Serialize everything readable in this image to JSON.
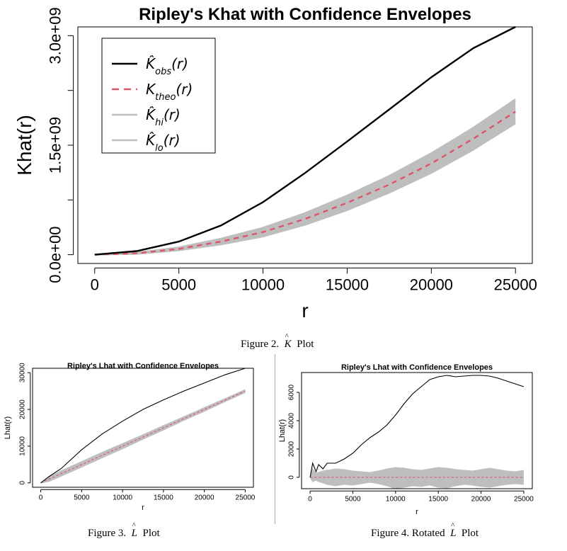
{
  "chart_data": [
    {
      "id": "k",
      "type": "line",
      "title": "Ripley's Khat with Confidence Envelopes",
      "xlabel": "r",
      "ylabel": "Khat(r)",
      "xlim": [
        0,
        25000
      ],
      "ylim": [
        0,
        3000000000
      ],
      "x_ticks": [
        0,
        5000,
        10000,
        15000,
        20000,
        25000
      ],
      "y_ticks": [
        0,
        1500000000,
        3000000000
      ],
      "y_tick_labels": [
        "0.0e+00",
        "1.5e+09",
        "3.0e+09"
      ],
      "legend_placement": "top-left",
      "legend": [
        "K̂obs(r)",
        "Ktheo(r)",
        "K̂hi(r)",
        "K̂lo(r)"
      ],
      "x": [
        0,
        2500,
        5000,
        7500,
        10000,
        12500,
        15000,
        17500,
        20000,
        22500,
        25000
      ],
      "series": [
        {
          "name": "obs",
          "color": "#000000",
          "values": [
            0,
            50000000,
            180000000,
            400000000,
            720000000,
            1120000000,
            1550000000,
            1990000000,
            2430000000,
            2830000000,
            3120000000
          ]
        },
        {
          "name": "theo",
          "color": "#df536b",
          "values": [
            0,
            20000000,
            80000000,
            180000000,
            310000000,
            490000000,
            710000000,
            960000000,
            1250000000,
            1590000000,
            1960000000
          ]
        },
        {
          "name": "hi",
          "color": "#bebebe",
          "values": [
            0,
            28000000,
            100000000,
            220000000,
            370000000,
            570000000,
            810000000,
            1080000000,
            1390000000,
            1740000000,
            2130000000
          ]
        },
        {
          "name": "lo",
          "color": "#bebebe",
          "values": [
            0,
            12000000,
            60000000,
            140000000,
            250000000,
            410000000,
            610000000,
            850000000,
            1120000000,
            1440000000,
            1800000000
          ]
        }
      ]
    },
    {
      "id": "l",
      "type": "line",
      "title": "Ripley's Lhat with Confidence Envelopes",
      "xlabel": "r",
      "ylabel": "Lhat(r)",
      "xlim": [
        0,
        25000
      ],
      "ylim": [
        0,
        30000
      ],
      "x_ticks": [
        0,
        5000,
        10000,
        15000,
        20000,
        25000
      ],
      "y_ticks": [
        0,
        10000,
        20000,
        30000
      ],
      "x": [
        0,
        1000,
        2500,
        5000,
        7500,
        10000,
        12500,
        15000,
        17500,
        20000,
        22500,
        25000
      ],
      "series": [
        {
          "name": "obs",
          "color": "#000000",
          "values": [
            0,
            1700,
            3900,
            9000,
            13300,
            16800,
            20000,
            22600,
            25000,
            27200,
            29400,
            31200
          ]
        },
        {
          "name": "theo",
          "color": "#df536b",
          "values": [
            0,
            1000,
            2500,
            5000,
            7500,
            10000,
            12500,
            15000,
            17500,
            20000,
            22500,
            25000
          ]
        },
        {
          "name": "hi",
          "color": "#bebebe",
          "values": [
            0,
            1600,
            3300,
            5800,
            8300,
            10700,
            13100,
            15600,
            18000,
            20500,
            22900,
            25400
          ]
        },
        {
          "name": "lo",
          "color": "#bebebe",
          "values": [
            0,
            400,
            1800,
            4300,
            6800,
            9300,
            11900,
            14400,
            17000,
            19500,
            22100,
            24600
          ]
        }
      ]
    },
    {
      "id": "rl",
      "type": "line",
      "title": "Ripley's Lhat with Confidence Envelopes",
      "xlabel": "r",
      "ylabel": "Lhat(r)",
      "xlim": [
        0,
        25000
      ],
      "ylim": [
        -800,
        7400
      ],
      "x_ticks": [
        0,
        5000,
        10000,
        15000,
        20000,
        25000
      ],
      "y_ticks": [
        0,
        2000,
        4000,
        6000
      ],
      "x": [
        0,
        300,
        700,
        1000,
        1500,
        2000,
        3000,
        4000,
        5000,
        6000,
        7000,
        8000,
        9000,
        10000,
        11000,
        12000,
        13000,
        14000,
        15000,
        16000,
        17000,
        18000,
        19000,
        20000,
        21000,
        22000,
        23000,
        24000,
        25000
      ],
      "series": [
        {
          "name": "obs",
          "color": "#000000",
          "values": [
            0,
            1000,
            400,
            900,
            600,
            1000,
            1000,
            1300,
            1700,
            2300,
            2800,
            3200,
            3700,
            4400,
            5200,
            5900,
            6400,
            6900,
            7100,
            7200,
            7100,
            7150,
            7200,
            7200,
            7150,
            7000,
            6800,
            6600,
            6400
          ]
        },
        {
          "name": "theo",
          "color": "#df536b",
          "values": [
            0,
            0,
            0,
            0,
            0,
            0,
            0,
            0,
            0,
            0,
            0,
            0,
            0,
            0,
            0,
            0,
            0,
            0,
            0,
            0,
            0,
            0,
            0,
            0,
            0,
            0,
            0,
            0,
            0
          ]
        },
        {
          "name": "hi",
          "color": "#bebebe",
          "values": [
            0,
            600,
            300,
            350,
            450,
            500,
            600,
            550,
            450,
            400,
            350,
            450,
            600,
            700,
            650,
            550,
            500,
            600,
            700,
            650,
            550,
            500,
            450,
            550,
            650,
            550,
            450,
            400,
            500
          ]
        },
        {
          "name": "lo",
          "color": "#bebebe",
          "values": [
            0,
            -300,
            -200,
            -300,
            -400,
            -500,
            -600,
            -500,
            -550,
            -450,
            -350,
            -450,
            -600,
            -800,
            -700,
            -600,
            -650,
            -550,
            -700,
            -750,
            -600,
            -500,
            -550,
            -650,
            -700,
            -600,
            -500,
            -450,
            -500
          ]
        }
      ]
    }
  ],
  "captions": {
    "fig2_prefix": "Figure 2.",
    "fig2_symbol": "K",
    "fig2_suffix": "Plot",
    "fig3_prefix": "Figure 3.",
    "fig3_symbol": "L",
    "fig3_suffix": "Plot",
    "fig4_prefix": "Figure 4. Rotated",
    "fig4_symbol": "L",
    "fig4_suffix": "Plot"
  }
}
